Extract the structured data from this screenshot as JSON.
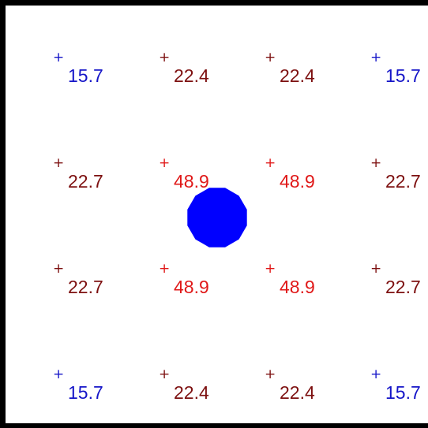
{
  "grid": {
    "rows": [
      {
        "cells": [
          {
            "value": "15.7",
            "color": "#1515c8"
          },
          {
            "value": "22.4",
            "color": "#7d1010"
          },
          {
            "value": "22.4",
            "color": "#7d1010"
          },
          {
            "value": "15.7",
            "color": "#1515c8"
          }
        ]
      },
      {
        "cells": [
          {
            "value": "22.7",
            "color": "#7d1010"
          },
          {
            "value": "48.9",
            "color": "#e01818"
          },
          {
            "value": "48.9",
            "color": "#e01818"
          },
          {
            "value": "22.7",
            "color": "#7d1010"
          }
        ]
      },
      {
        "cells": [
          {
            "value": "22.7",
            "color": "#7d1010"
          },
          {
            "value": "48.9",
            "color": "#e01818"
          },
          {
            "value": "48.9",
            "color": "#e01818"
          },
          {
            "value": "22.7",
            "color": "#7d1010"
          }
        ]
      },
      {
        "cells": [
          {
            "value": "15.7",
            "color": "#1515c8"
          },
          {
            "value": "22.4",
            "color": "#7d1010"
          },
          {
            "value": "22.4",
            "color": "#7d1010"
          },
          {
            "value": "15.7",
            "color": "#1515c8"
          }
        ]
      }
    ],
    "marker_symbol": "+"
  },
  "source_marker": {
    "icon": "blue-dodecagon-icon",
    "color": "#0000ff"
  },
  "colors": {
    "border": "#000000",
    "background": "#ffffff"
  }
}
